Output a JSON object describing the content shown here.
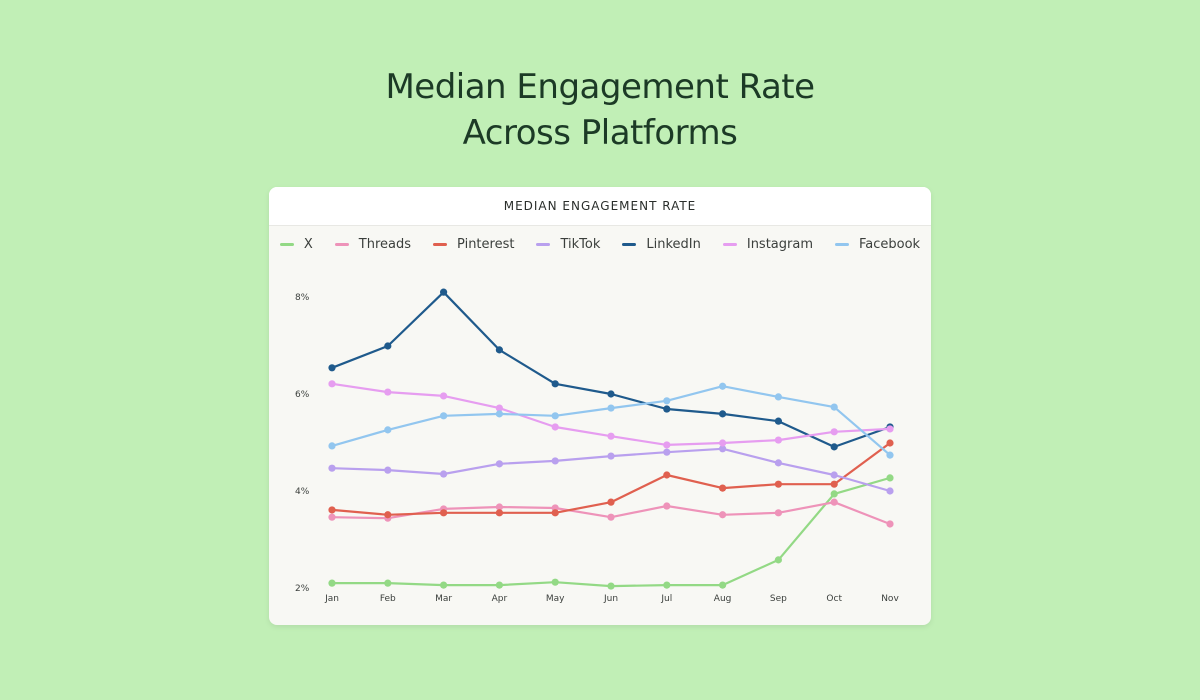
{
  "page": {
    "headline_line1": "Median Engagement Rate",
    "headline_line2": "Across Platforms"
  },
  "chart_data": {
    "type": "line",
    "title": "MEDIAN ENGAGEMENT RATE",
    "xlabel": "",
    "ylabel": "",
    "x": [
      "Jan",
      "Feb",
      "Mar",
      "Apr",
      "May",
      "Jun",
      "Jul",
      "Aug",
      "Sep",
      "Oct",
      "Nov"
    ],
    "ylim": [
      2,
      8
    ],
    "yticks": [
      2,
      4,
      6,
      8
    ],
    "ytick_labels": [
      "2%",
      "4%",
      "6%",
      "8%"
    ],
    "grid": false,
    "legend_position": "top",
    "series": [
      {
        "name": "X",
        "color": "#93d985",
        "values": [
          2.1,
          2.1,
          2.06,
          2.06,
          2.12,
          2.04,
          2.06,
          2.06,
          2.58,
          3.94,
          4.27
        ]
      },
      {
        "name": "Threads",
        "color": "#ee93b9",
        "values": [
          3.46,
          3.44,
          3.63,
          3.67,
          3.65,
          3.46,
          3.69,
          3.51,
          3.55,
          3.77,
          3.32
        ]
      },
      {
        "name": "Pinterest",
        "color": "#e0604f",
        "values": [
          3.61,
          3.51,
          3.55,
          3.55,
          3.55,
          3.77,
          4.33,
          4.06,
          4.14,
          4.14,
          4.99
        ]
      },
      {
        "name": "TikTok",
        "color": "#b9a0ee",
        "values": [
          4.47,
          4.43,
          4.35,
          4.56,
          4.62,
          4.72,
          4.8,
          4.87,
          4.58,
          4.33,
          4.0
        ]
      },
      {
        "name": "LinkedIn",
        "color": "#1f5a8c",
        "values": [
          6.54,
          6.99,
          8.1,
          6.91,
          6.21,
          6.0,
          5.69,
          5.59,
          5.44,
          4.91,
          5.32
        ]
      },
      {
        "name": "Instagram",
        "color": "#e69df0",
        "values": [
          6.21,
          6.04,
          5.96,
          5.71,
          5.32,
          5.13,
          4.95,
          4.99,
          5.05,
          5.22,
          5.28
        ]
      },
      {
        "name": "Facebook",
        "color": "#92c6ef",
        "values": [
          4.93,
          5.26,
          5.55,
          5.59,
          5.55,
          5.71,
          5.86,
          6.16,
          5.94,
          5.73,
          4.74
        ]
      }
    ]
  }
}
